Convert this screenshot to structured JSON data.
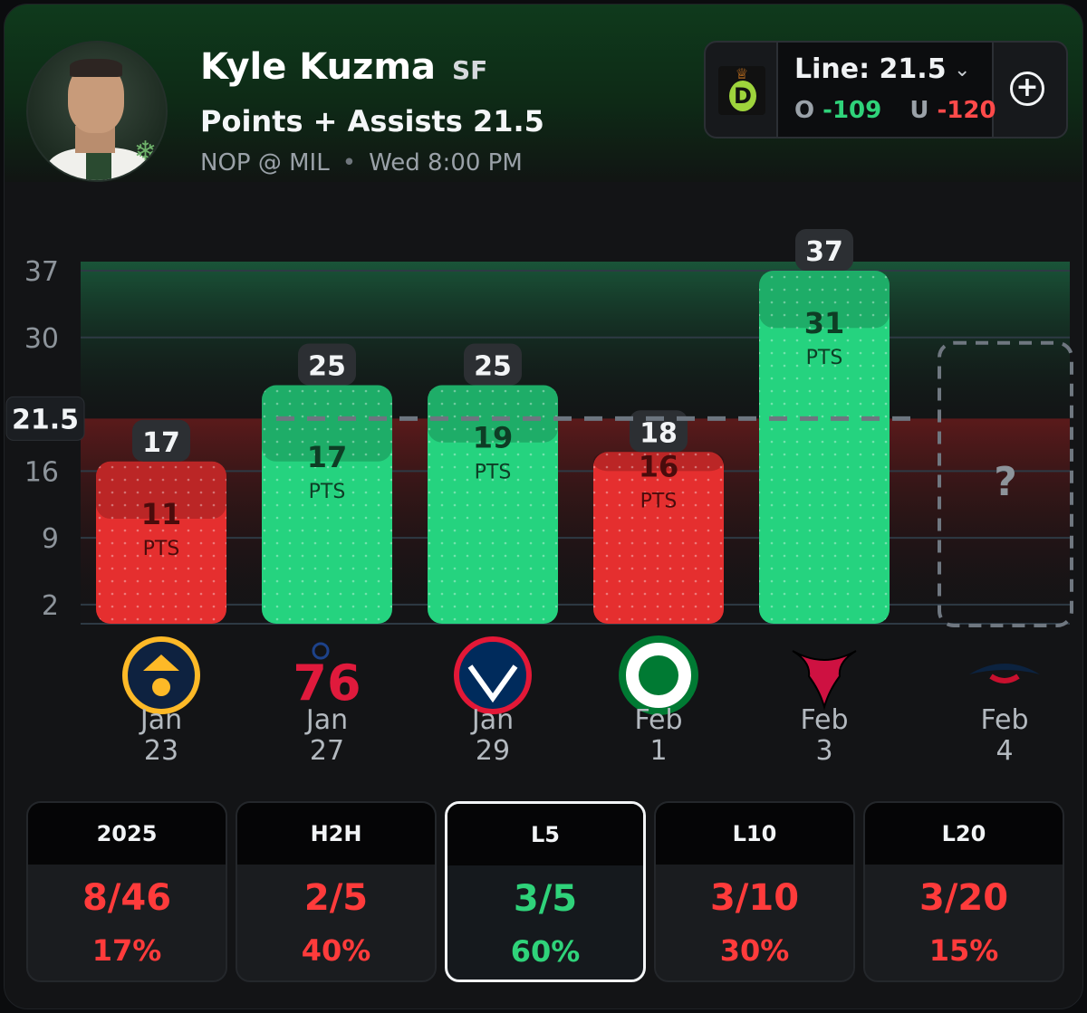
{
  "player": {
    "name": "Kyle Kuzma",
    "position": "SF",
    "prop": "Points + Assists 21.5",
    "matchup": "NOP @ MIL",
    "game_time": "Wed 8:00 PM",
    "team_logo_icon": "bucks-logo-icon"
  },
  "line_box": {
    "sportsbook_icon": "draftkings-logo-icon",
    "line_label": "Line: 21.5",
    "over_label": "O",
    "over_odds": "-109",
    "under_label": "U",
    "under_odds": "-120",
    "chevron_icon": "chevron-down-icon",
    "add_icon": "plus-circle-icon"
  },
  "chart_data": {
    "type": "bar",
    "y_ticks": [
      "37",
      "30",
      "16",
      "9",
      "2"
    ],
    "line_label": "21.5",
    "line_value": 21.5,
    "ylim": [
      0,
      40
    ],
    "unit_label": "PTS",
    "games": [
      {
        "total": 17,
        "pts": 11,
        "month": "Jan",
        "day": "23",
        "opponent_icon": "nuggets-logo-icon",
        "result": "under"
      },
      {
        "total": 25,
        "pts": 17,
        "month": "Jan",
        "day": "27",
        "opponent_icon": "76ers-logo-icon",
        "result": "over"
      },
      {
        "total": 25,
        "pts": 19,
        "month": "Jan",
        "day": "29",
        "opponent_icon": "wizards-logo-icon",
        "result": "over"
      },
      {
        "total": 18,
        "pts": 16,
        "month": "Feb",
        "day": "1",
        "opponent_icon": "celtics-logo-icon",
        "result": "under"
      },
      {
        "total": 37,
        "pts": 31,
        "month": "Feb",
        "day": "3",
        "opponent_icon": "bulls-logo-icon",
        "result": "over"
      }
    ],
    "upcoming": {
      "label": "?",
      "month": "Feb",
      "day": "4",
      "opponent_icon": "pelicans-logo-icon"
    },
    "colors": {
      "over": "#25d37f",
      "under": "#e52f2f"
    }
  },
  "stats": [
    {
      "label": "2025",
      "value": "8/46",
      "pct": "17%",
      "status": "under",
      "active": false
    },
    {
      "label": "H2H",
      "value": "2/5",
      "pct": "40%",
      "status": "under",
      "active": false
    },
    {
      "label": "L5",
      "value": "3/5",
      "pct": "60%",
      "status": "over",
      "active": true
    },
    {
      "label": "L10",
      "value": "3/10",
      "pct": "30%",
      "status": "under",
      "active": false
    },
    {
      "label": "L20",
      "value": "3/20",
      "pct": "15%",
      "status": "under",
      "active": false
    }
  ]
}
